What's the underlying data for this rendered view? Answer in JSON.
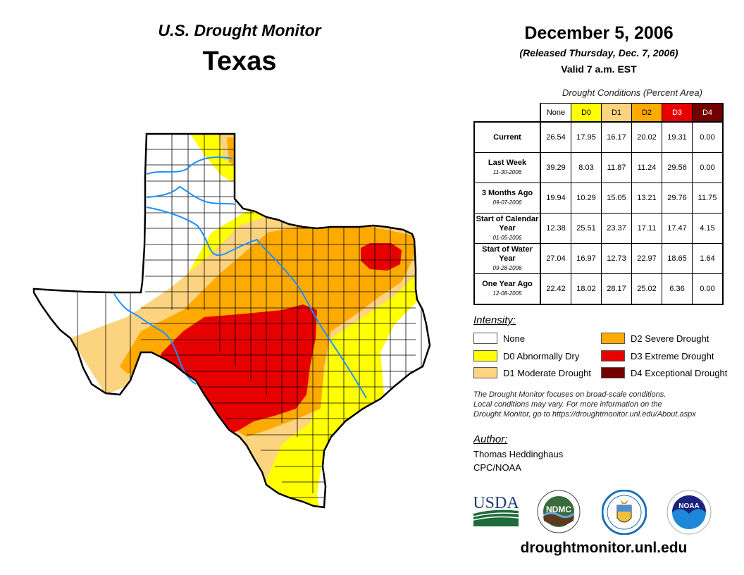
{
  "header": {
    "title": "U.S. Drought Monitor",
    "region": "Texas",
    "date": "December 5, 2006",
    "released": "(Released Thursday, Dec. 7, 2006)",
    "valid": "Valid 7 a.m. EST"
  },
  "table": {
    "caption": "Drought Conditions (Percent Area)",
    "columns": [
      {
        "label": "None",
        "bg": "#ffffff",
        "fg": "#000000"
      },
      {
        "label": "D0",
        "bg": "#ffff00",
        "fg": "#000000"
      },
      {
        "label": "D1",
        "bg": "#fcd37f",
        "fg": "#000000"
      },
      {
        "label": "D2",
        "bg": "#ffaa00",
        "fg": "#000000"
      },
      {
        "label": "D3",
        "bg": "#e60000",
        "fg": "#ffffff"
      },
      {
        "label": "D4",
        "bg": "#730000",
        "fg": "#ffffff"
      }
    ],
    "rows": [
      {
        "label": "Current",
        "sub": "",
        "values": [
          "26.54",
          "17.95",
          "16.17",
          "20.02",
          "19.31",
          "0.00"
        ]
      },
      {
        "label": "Last Week",
        "sub": "11-30-2006",
        "values": [
          "39.29",
          "8.03",
          "11.87",
          "11.24",
          "29.56",
          "0.00"
        ]
      },
      {
        "label": "3 Months Ago",
        "sub": "09-07-2006",
        "values": [
          "19.94",
          "10.29",
          "15.05",
          "13.21",
          "29.76",
          "11.75"
        ]
      },
      {
        "label": "Start of Calendar Year",
        "sub": "01-05-2006",
        "values": [
          "12.38",
          "25.51",
          "23.37",
          "17.11",
          "17.47",
          "4.15"
        ]
      },
      {
        "label": "Start of Water Year",
        "sub": "09-28-2006",
        "values": [
          "27.04",
          "16.97",
          "12.73",
          "22.97",
          "18.65",
          "1.64"
        ]
      },
      {
        "label": "One Year Ago",
        "sub": "12-08-2005",
        "values": [
          "22.42",
          "18.02",
          "28.17",
          "25.02",
          "6.36",
          "0.00"
        ]
      }
    ]
  },
  "legend": {
    "title": "Intensity:",
    "items": [
      {
        "label": "None",
        "color": "#ffffff"
      },
      {
        "label": "D0 Abnormally Dry",
        "color": "#ffff00"
      },
      {
        "label": "D1 Moderate Drought",
        "color": "#fcd37f"
      },
      {
        "label": "D2 Severe Drought",
        "color": "#ffaa00"
      },
      {
        "label": "D3 Extreme Drought",
        "color": "#e60000"
      },
      {
        "label": "D4 Exceptional Drought",
        "color": "#730000"
      }
    ]
  },
  "note": {
    "line1": "The Drought Monitor focuses on broad-scale conditions.",
    "line2": "Local conditions may vary. For more information on the",
    "line3": "Drought Monitor, go to https://droughtmonitor.unl.edu/About.aspx"
  },
  "author": {
    "title": "Author:",
    "name": "Thomas Heddinghaus",
    "org": "CPC/NOAA"
  },
  "logos": {
    "usda": "USDA",
    "ndmc": "NDMC",
    "doc": "Department of Commerce",
    "noaa": "NOAA"
  },
  "site": "droughtmonitor.unl.edu",
  "colors": {
    "none": "#ffffff",
    "d0": "#ffff00",
    "d1": "#fcd37f",
    "d2": "#ffaa00",
    "d3": "#e60000",
    "d4": "#730000",
    "river": "#1e90ff"
  }
}
